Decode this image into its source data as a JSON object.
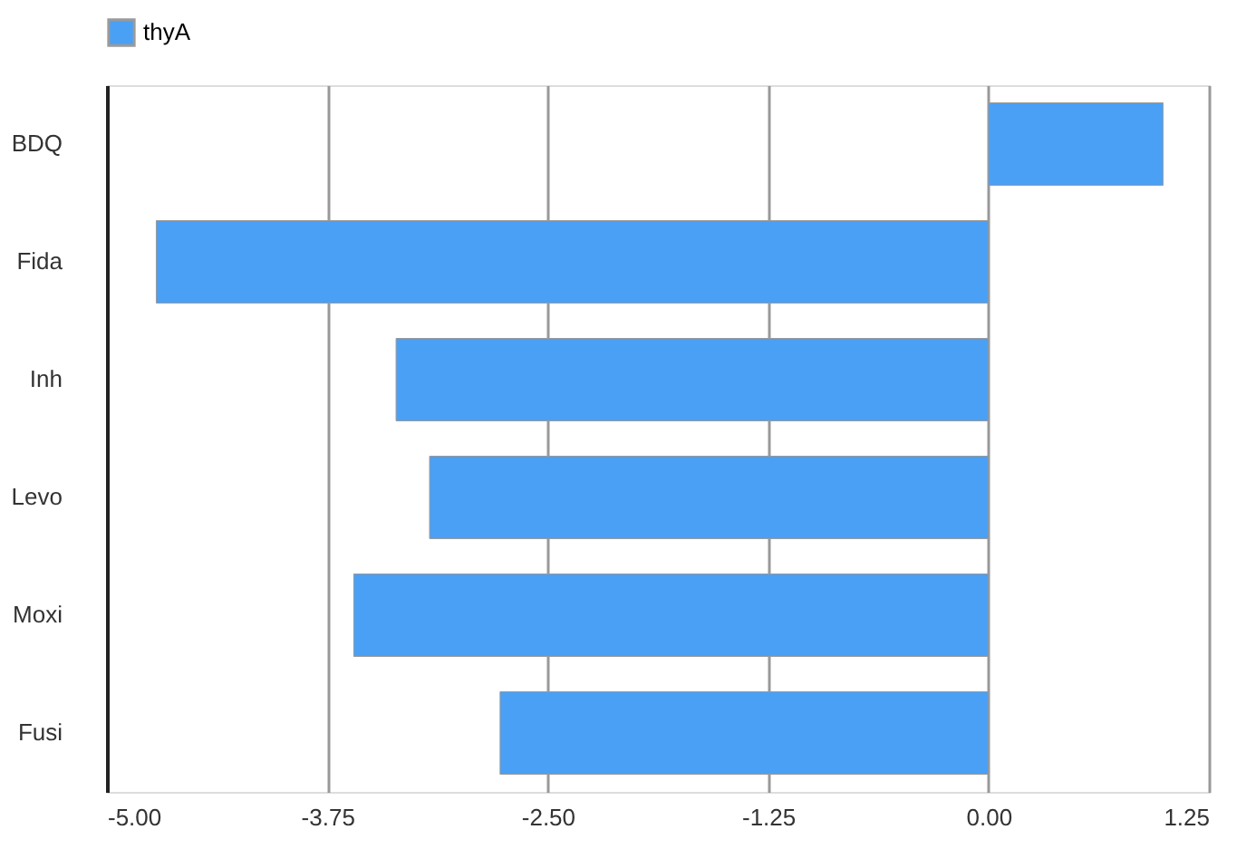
{
  "chart_data": {
    "type": "bar",
    "orientation": "horizontal",
    "categories": [
      "BDQ",
      "Fida",
      "Inh",
      "Levo",
      "Moxi",
      "Fusi"
    ],
    "series": [
      {
        "name": "thyA",
        "color": "#4aa0f5",
        "values": [
          0.99,
          -4.72,
          -3.36,
          -3.17,
          -3.6,
          -2.77
        ]
      }
    ],
    "xlim": [
      -5,
      1.25
    ],
    "xticks": [
      {
        "value": -5,
        "label": "-5.00"
      },
      {
        "value": -3.75,
        "label": "-3.75"
      },
      {
        "value": -2.5,
        "label": "-2.50"
      },
      {
        "value": -1.25,
        "label": "-1.25"
      },
      {
        "value": 0,
        "label": "0.00"
      },
      {
        "value": 1.25,
        "label": "1.25"
      }
    ],
    "grid": "x",
    "legend": "top"
  }
}
